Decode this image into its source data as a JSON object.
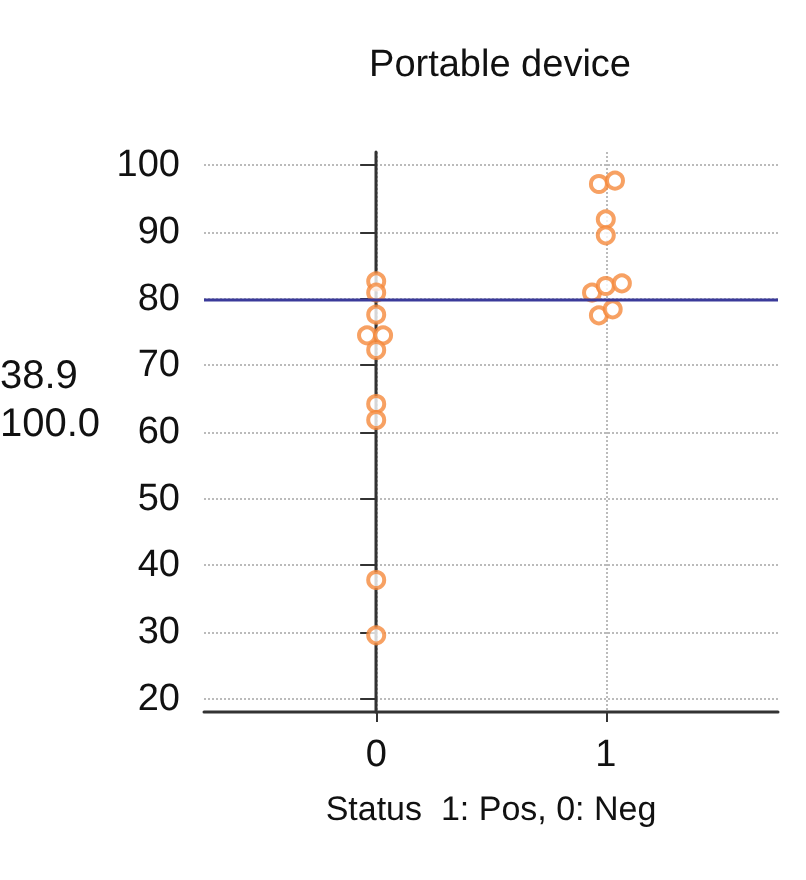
{
  "chart_data": {
    "type": "scatter",
    "title": "Portable device",
    "xlabel": "Status  1: Pos, 0: Neg",
    "annotations": [
      "38.9",
      "100.0"
    ],
    "series": [
      {
        "color": "#f58a3c",
        "x": [
          0,
          0,
          0,
          -0.04,
          0.03,
          0,
          0,
          0,
          0,
          0
        ],
        "values": [
          82.6,
          80.9,
          77.6,
          74.5,
          74.5,
          72.3,
          64.2,
          61.8,
          37.8,
          29.5
        ]
      },
      {
        "color": "#f58a3c",
        "x": [
          0.97,
          1.04,
          1,
          1,
          0.94,
          1,
          1.07,
          0.97,
          1.03
        ],
        "values": [
          97.2,
          97.7,
          91.9,
          89.5,
          80.9,
          81.9,
          82.3,
          77.5,
          78.4
        ]
      }
    ],
    "xlim": [
      -0.75,
      1.75
    ],
    "xticks": [
      0,
      1
    ],
    "ylim": [
      18,
      102
    ],
    "yticks": [
      20,
      30,
      40,
      50,
      60,
      70,
      80,
      90,
      100
    ],
    "ref_lines": [
      {
        "axis": "y",
        "value": 80,
        "color": "#3a3a9a"
      }
    ],
    "grid": true,
    "marker": "circle"
  }
}
